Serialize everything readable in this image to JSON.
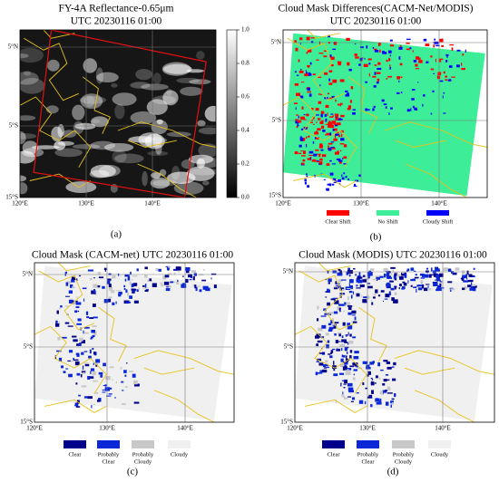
{
  "panels": [
    {
      "label": "(a)",
      "title": [
        "FY-4A Reflectance-0.65μm",
        "UTC 20230116 01:00"
      ],
      "x_ticks": [
        "120°E",
        "130°E",
        "140°E"
      ],
      "y_ticks": [
        "5°N",
        "5°S",
        "15°S"
      ],
      "colorbar_ticks": [
        "1.0",
        "0.8",
        "0.6",
        "0.4",
        "0.2",
        "0.0"
      ]
    },
    {
      "label": "(b)",
      "title": [
        "Cloud Mask Differences(CACM-Net/MODIS)",
        "UTC 20230116 01:00"
      ],
      "x_ticks": [
        "120°E",
        "130°E",
        "140°E"
      ],
      "y_ticks": [
        "5°N",
        "5°S",
        "15°S"
      ],
      "legend": [
        {
          "label": [
            "Clear Shift"
          ],
          "color": "#ff0000"
        },
        {
          "label": [
            "No Shift"
          ],
          "color": "#3ded97"
        },
        {
          "label": [
            "Cloudy Shift"
          ],
          "color": "#0000ff"
        }
      ]
    },
    {
      "label": "(c)",
      "title": [
        "Cloud Mask (CACM-net) UTC 20230116 01:00"
      ],
      "x_ticks": [
        "120°E",
        "130°E",
        "140°E"
      ],
      "y_ticks": [
        "5°N",
        "5°S",
        "15°S"
      ],
      "legend": [
        {
          "label": [
            "Clear"
          ],
          "color": "#00008b"
        },
        {
          "label": [
            "Probably",
            "Clear"
          ],
          "color": "#0a28d8"
        },
        {
          "label": [
            "Probably",
            "Cloudy"
          ],
          "color": "#c8c8c8"
        },
        {
          "label": [
            "Cloudy"
          ],
          "color": "#f0f0f0"
        }
      ]
    },
    {
      "label": "(d)",
      "title": [
        "Cloud Mask (MODIS) UTC 20230116 01:00"
      ],
      "x_ticks": [
        "120°E",
        "130°E",
        "140°E"
      ],
      "y_ticks": [
        "5°N",
        "5°S",
        "15°S"
      ],
      "legend": [
        {
          "label": [
            "Clear"
          ],
          "color": "#00008b"
        },
        {
          "label": [
            "Probably",
            "Clear"
          ],
          "color": "#0a28d8"
        },
        {
          "label": [
            "Probably",
            "Cloudy"
          ],
          "color": "#c8c8c8"
        },
        {
          "label": [
            "Cloudy"
          ],
          "color": "#f0f0f0"
        }
      ]
    }
  ]
}
